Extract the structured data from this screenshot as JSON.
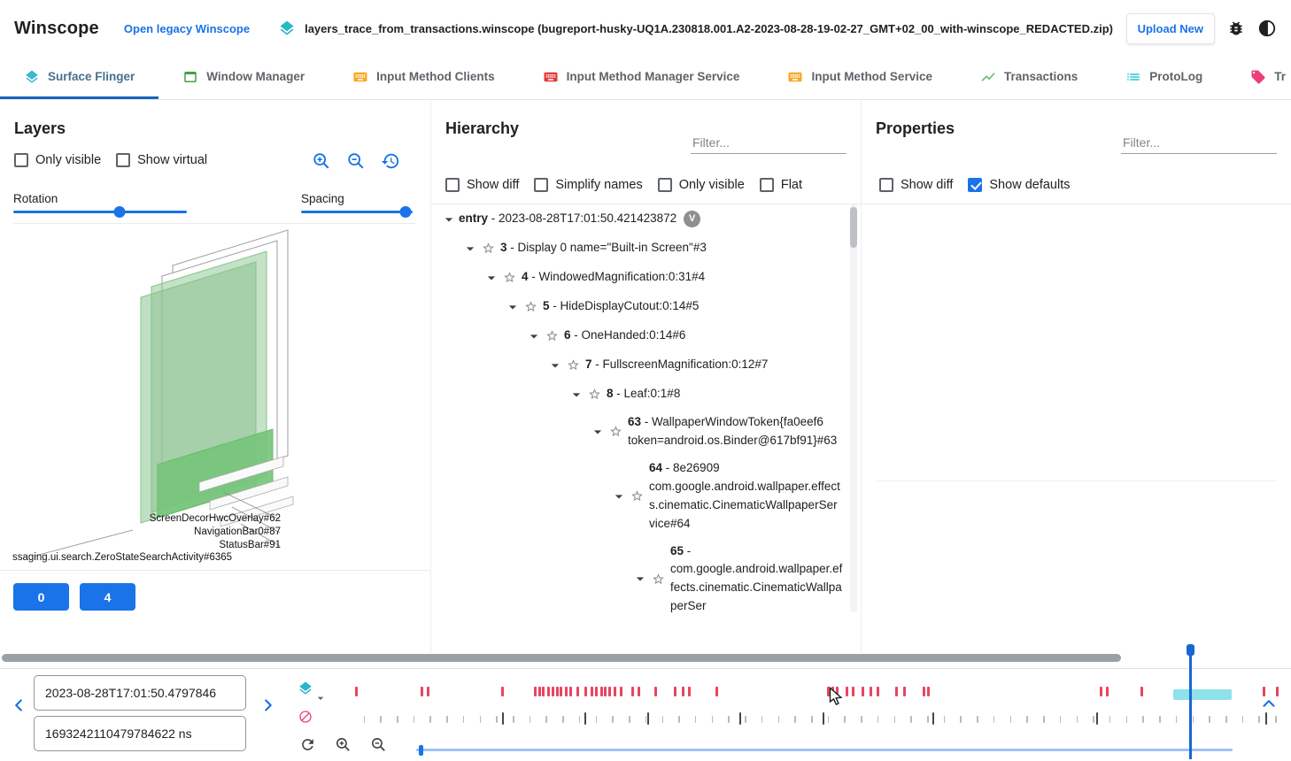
{
  "header": {
    "app_title": "Winscope",
    "legacy_link": "Open legacy Winscope",
    "trace_file": "layers_trace_from_transactions.winscope (bugreport-husky-UQ1A.230818.001.A2-2023-08-28-19-02-27_GMT+02_00_with-winscope_REDACTED.zip)",
    "upload_button": "Upload New"
  },
  "icons": {
    "file_icon": "layers-icon",
    "header_icons": [
      "bug-report-icon",
      "dark-mode-icon"
    ],
    "layers_tools": [
      "zoom-in-icon",
      "zoom-out-icon",
      "restore-view-icon"
    ],
    "timeline_icons": [
      "layers-trace-icon",
      "transactions-trace-icon",
      "refresh-icon",
      "zoom-in-icon",
      "zoom-out-icon",
      "prev-entry-icon",
      "next-entry-icon",
      "collapse-timeline-icon"
    ]
  },
  "colors": {
    "accent": "#1a73e8",
    "active_tab_underline": "#1565c0",
    "sf_tick": "#e8455f",
    "selection_teal": "#7bdce8",
    "marker_blue": "#1967d2",
    "layer_green": "#81c784"
  },
  "tabs": [
    {
      "label": "Surface Flinger",
      "icon": "layers",
      "color": "#3fb6d3",
      "active": true
    },
    {
      "label": "Window Manager",
      "icon": "window",
      "color": "#43a047",
      "active": false
    },
    {
      "label": "Input Method Clients",
      "icon": "keyboard",
      "color": "#f9a825",
      "active": false
    },
    {
      "label": "Input Method Manager Service",
      "icon": "keyboard",
      "color": "#e53935",
      "active": false
    },
    {
      "label": "Input Method Service",
      "icon": "keyboard",
      "color": "#f9a825",
      "active": false
    },
    {
      "label": "Transactions",
      "icon": "chart",
      "color": "#66bb6a",
      "active": false
    },
    {
      "label": "ProtoLog",
      "icon": "list",
      "color": "#26c6da",
      "active": false
    },
    {
      "label": "Tr",
      "icon": "tag",
      "color": "#ec407a",
      "active": false
    }
  ],
  "layers_panel": {
    "title": "Layers",
    "checkboxes": [
      {
        "label": "Only visible",
        "checked": false
      },
      {
        "label": "Show virtual",
        "checked": false
      }
    ],
    "rotation_label": "Rotation",
    "spacing_label": "Spacing",
    "rotation_value": 61,
    "spacing_value": 94,
    "layer_labels": [
      "ScreenDecorHwcOverlay#62",
      "NavigationBar0#87",
      "StatusBar#91",
      "ssaging.ui.search.ZeroStateSearchActivity#6365"
    ],
    "display_buttons": [
      "0",
      "4"
    ]
  },
  "hierarchy_panel": {
    "title": "Hierarchy",
    "filter_placeholder": "Filter...",
    "checkboxes": [
      {
        "label": "Show diff",
        "checked": false
      },
      {
        "label": "Simplify names",
        "checked": false
      },
      {
        "label": "Only visible",
        "checked": false
      },
      {
        "label": "Flat",
        "checked": false
      }
    ],
    "tree": [
      {
        "id": "entry",
        "text": "- 2023-08-28T17:01:50.421423872",
        "badge": "V",
        "depth": 0,
        "caret": true,
        "star": false
      },
      {
        "id": "3",
        "text": "- Display 0 name=\"Built-in Screen\"#3",
        "depth": 1,
        "caret": true,
        "star": true
      },
      {
        "id": "4",
        "text": "- WindowedMagnification:0:31#4",
        "depth": 2,
        "caret": true,
        "star": true
      },
      {
        "id": "5",
        "text": "- HideDisplayCutout:0:14#5",
        "depth": 3,
        "caret": true,
        "star": true
      },
      {
        "id": "6",
        "text": "- OneHanded:0:14#6",
        "depth": 4,
        "caret": true,
        "star": true
      },
      {
        "id": "7",
        "text": "- FullscreenMagnification:0:12#7",
        "depth": 5,
        "caret": true,
        "star": true
      },
      {
        "id": "8",
        "text": "- Leaf:0:1#8",
        "depth": 6,
        "caret": true,
        "star": true
      },
      {
        "id": "63",
        "text": "- WallpaperWindowToken{fa0eef6 token=android.os.Binder@617bf91}#63",
        "depth": 7,
        "caret": true,
        "star": true
      },
      {
        "id": "64",
        "text": "- 8e26909 com.google.android.wallpaper.effects.cinematic.CinematicWallpaperService#64",
        "depth": 8,
        "caret": true,
        "star": true
      },
      {
        "id": "65",
        "text": "- com.google.android.wallpaper.effects.cinematic.CinematicWallpaperSer",
        "depth": 9,
        "caret": true,
        "star": true
      }
    ]
  },
  "properties_panel": {
    "title": "Properties",
    "filter_placeholder": "Filter...",
    "checkboxes": [
      {
        "label": "Show diff",
        "checked": false
      },
      {
        "label": "Show defaults",
        "checked": true
      }
    ]
  },
  "timeline": {
    "timestamp_human": "2023-08-28T17:01:50.4797846",
    "timestamp_ns": "1693242110479784622 ns",
    "sf_tick_color": "#e8455f",
    "sf_ticks": [
      0.1,
      7.1,
      7.8,
      15.7,
      19.2,
      19.7,
      20.1,
      20.6,
      21.1,
      21.6,
      22.0,
      22.5,
      23.0,
      23.8,
      24.6,
      25.3,
      25.8,
      26.3,
      26.7,
      27.2,
      27.7,
      28.4,
      29.6,
      30.3,
      32.1,
      34.2,
      35.0,
      35.7,
      38.6,
      50.6,
      51.0,
      51.5,
      52.6,
      53.2,
      54.3,
      55.1,
      55.9,
      57.9,
      58.7,
      60.8,
      61.3,
      79.7,
      80.4,
      84.1,
      97.2,
      98.6
    ],
    "minor_tick_count": 56,
    "dark_ticks": [
      15.8,
      24.6,
      31.3,
      41.2,
      50.1,
      61.8,
      79.4,
      89.3,
      97.4
    ],
    "marker_pos": 89.3,
    "marker_color": "#1967d2",
    "selection_start": 87.6,
    "selection_end": 93.8,
    "selection_color": "#7bdce8",
    "zoom_slider_pos": 0.3
  }
}
